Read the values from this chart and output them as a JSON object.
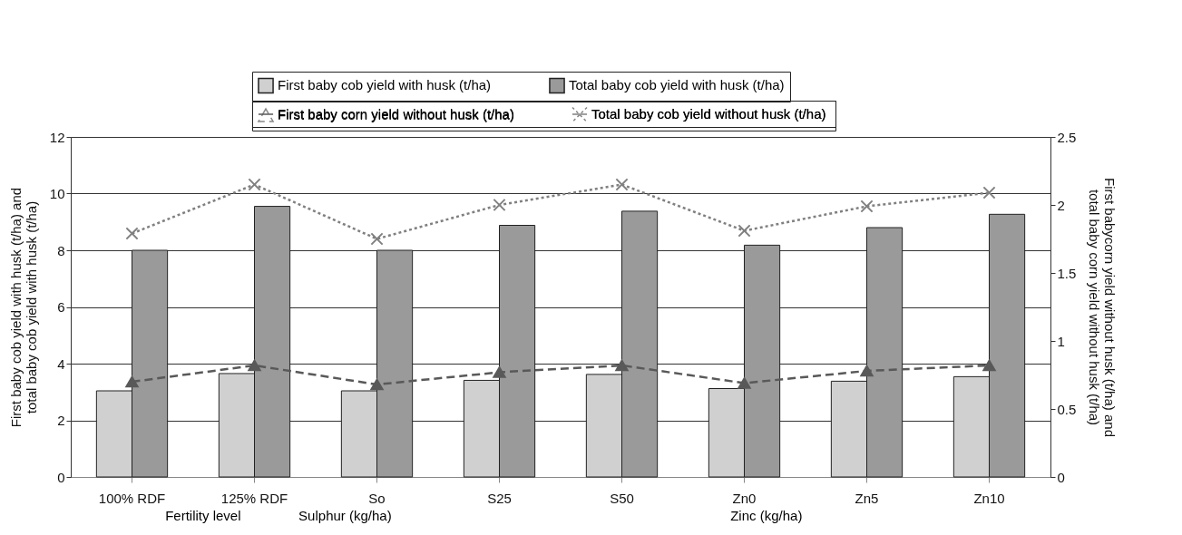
{
  "chart_data": {
    "type": "bar",
    "categories": [
      "100% RDF",
      "125% RDF",
      "So",
      "S25",
      "S50",
      "Zn0",
      "Zn5",
      "Zn10"
    ],
    "ylabel": "First baby cob yield with husk (t/ha) and\ntotal baby cob yield with husk (t/ha)",
    "y2label": "First babycorn yield without husk (t/ha) and\ntotal baby corn yield without husk (t/ha)",
    "series": [
      {
        "name": "First baby cob yield with husk (t/ha)",
        "color": "#d0d0d0",
        "values": [
          3.04,
          3.65,
          3.04,
          3.41,
          3.62,
          3.12,
          3.38,
          3.54
        ]
      },
      {
        "name": "Total baby cob yield with husk (t/ha)",
        "color": "#9a9a9a",
        "values": [
          8.0,
          9.55,
          8.0,
          8.88,
          9.38,
          8.18,
          8.8,
          9.27
        ]
      },
      {
        "name": "First baby corn yield without husk (t/ha)",
        "type": "line",
        "axis": "y2",
        "color": "#595959",
        "marker": "triangle",
        "line_style": "dashed",
        "values": [
          0.7,
          0.82,
          0.68,
          0.77,
          0.82,
          0.69,
          0.78,
          0.82
        ]
      },
      {
        "name": "Total baby cob yield without  husk (t/ha)",
        "type": "line",
        "axis": "y2",
        "color": "#808080",
        "marker": "cross",
        "line_style": "dotted",
        "values": [
          1.79,
          2.15,
          1.75,
          2.0,
          2.15,
          1.81,
          1.99,
          2.09
        ]
      }
    ],
    "ylim": [
      0,
      12
    ],
    "yticks": [
      0,
      2,
      4,
      6,
      8,
      10,
      12
    ],
    "y2lim": [
      0,
      2.5
    ],
    "y2ticks": [
      0,
      0.5,
      1,
      1.5,
      2,
      2.5
    ],
    "grid": "y",
    "legend": "top",
    "annotations": [
      "Fertility level",
      "Sulphur (kg/ha)",
      "Zinc (kg/ha)"
    ]
  }
}
